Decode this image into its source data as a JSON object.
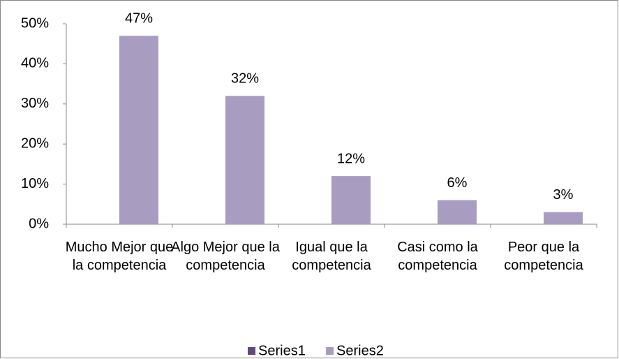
{
  "chart_data": {
    "type": "bar",
    "categories": [
      "Mucho Mejor que la competencia",
      "Algo Mejor que la competencia",
      "Igual que la competencia",
      "Casi como la competencia",
      "Peor que la competencia"
    ],
    "series": [
      {
        "name": "Series1",
        "color": "#604a7b",
        "values": [
          null,
          null,
          null,
          null,
          null
        ]
      },
      {
        "name": "Series2",
        "color": "#a89cc1",
        "values": [
          47,
          32,
          12,
          6,
          3
        ],
        "value_labels": [
          "47%",
          "32%",
          "12%",
          "6%",
          "3%"
        ]
      }
    ],
    "ylim": [
      0,
      50
    ],
    "yticks": [
      {
        "value": 0,
        "label": "0%"
      },
      {
        "value": 10,
        "label": "10%"
      },
      {
        "value": 20,
        "label": "20%"
      },
      {
        "value": 30,
        "label": "30%"
      },
      {
        "value": 40,
        "label": "40%"
      },
      {
        "value": 50,
        "label": "50%"
      }
    ],
    "grid": false,
    "legend": "bottom"
  }
}
